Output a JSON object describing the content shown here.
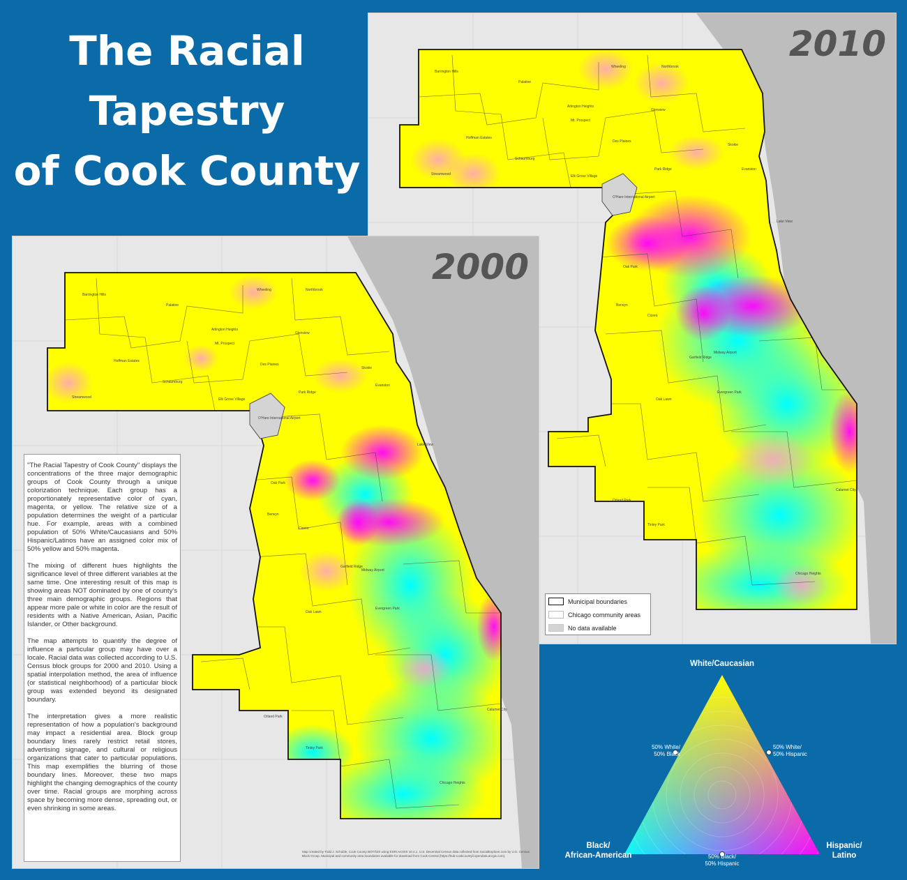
{
  "title": {
    "line1": "The Racial",
    "line2": "Tapestry",
    "line3": "of Cook County"
  },
  "maps": {
    "year_2010": "2010",
    "year_2000": "2000"
  },
  "places": [
    "Barrington Hills",
    "Palatine",
    "Wheeling",
    "Northbrook",
    "Arlington Heights",
    "Mt. Prospect",
    "Glenview",
    "Hoffman Estates",
    "Schaumburg",
    "Des Plaines",
    "Skokie",
    "Evanston",
    "Streamwood",
    "Elk Grove Village",
    "Park Ridge",
    "O'Hare International Airport",
    "Oak Park",
    "Berwyn",
    "Cicero",
    "Midway Airport",
    "Lake View",
    "Garfield Ridge",
    "Oak Lawn",
    "Chicago Heights",
    "Tinley Park",
    "Orland Park",
    "Evergreen Park",
    "Calumet City"
  ],
  "legend": {
    "municipal": "Municipal boundaries",
    "community": "Chicago community areas",
    "no_data": "No data available"
  },
  "description": [
    "\"The Racial Tapestry of Cook County\" displays the concentrations of the three major demographic groups of Cook County through a unique colorization technique.  Each group has a proportionately representative color of cyan, magenta, or yellow.  The relative size of a population determines the weight of a particular hue.  For example, areas with a combined population of 50% White/Caucasians and 50% Hispanic/Latinos have an assigned color mix of 50% yellow and 50% magenta.",
    "The mixing of different hues highlights the significance level of three different variables at the same time.  One interesting result of this map is showing areas NOT dominated by one of county's three main demographic groups. Regions that appear more pale or white in color are the result of residents with a Native American, Asian, Pacific Islander, or Other background.",
    "The map attempts to quantify the degree of influence a particular group may have over a locale.  Racial data was collected according to U.S. Census block groups for 2000 and 2010. Using a spatial interpolation method, the area of influence (or statistical neighborhood) of a particular block group was extended beyond its designated boundary.",
    "The interpretation gives a more realistic representation of how a population's background may impact a residential area.  Block group boundary lines rarely restrict retail stores, advertising signage, and cultural or religious organizations that cater to particular populations.  This map exemplifies the blurring of those boundary lines.  Moreover, these two maps highlight the changing demographics of the county over time.  Racial groups are morphing across space by becoming more dense, spreading out, or even shrinking in some areas."
  ],
  "credit": "Map created by Todd J. Schuble, Cook County BOT/GIS using ESRI ArcGIS 10.4.1.  U.S. Decennial Census data collected from SocialExplorer.com by U.S. Census Block Group. Municipal and community area boundaries available for download from Cook Central (https://hub-cookcountyil.opendata.arcgis.com).",
  "triangle": {
    "white": "White/Caucasian",
    "black_line1": "Black/",
    "black_line2": "African-American",
    "hispanic_line1": "Hispanic/",
    "hispanic_line2": "Latino",
    "wb_line1": "50% White/",
    "wb_line2": "50% Black",
    "wh_line1": "50% White/",
    "wh_line2": "50% Hispanic",
    "bh_line1": "50% Black/",
    "bh_line2": "50% Hispanic"
  },
  "colors": {
    "background": "#0b6aa8",
    "white_caucasian": "#ffff00",
    "black_african_american": "#00ffff",
    "hispanic_latino": "#ff00ff",
    "lake": "#bdbdbd",
    "base_map": "#e7e7e7"
  }
}
